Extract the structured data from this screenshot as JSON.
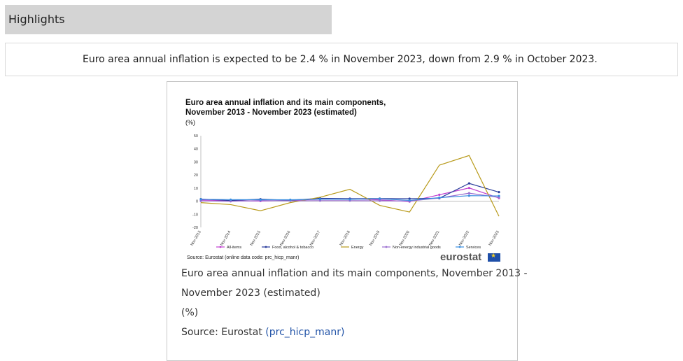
{
  "highlights": {
    "title": "Highlights"
  },
  "summary": {
    "text": "Euro area annual inflation is expected to be 2.4 % in November 2023, down from 2.9 % in October 2023."
  },
  "figure": {
    "chart_title_line1": "Euro area annual inflation and its main components,",
    "chart_title_line2": "November 2013 - November 2023 (estimated)",
    "unit": "(%)",
    "source_line": "Source: Eurostat (online data code: prc_hicp_manr)",
    "logo": "eurostat",
    "caption_line1": "Euro area annual inflation and its main components, November 2013 -",
    "caption_line2": "November 2023 (estimated)",
    "caption_unit": "(%)",
    "caption_source_prefix": "Source: Eurostat ",
    "caption_source_link": "(prc_hicp_manr)"
  },
  "chart_data": {
    "type": "line",
    "title": "Euro area annual inflation and its main components, November 2013 - November 2023 (estimated)",
    "ylabel": "(%)",
    "ylim": [
      -20,
      50
    ],
    "yticks": [
      -20,
      -10,
      0,
      10,
      20,
      30,
      40,
      50
    ],
    "x": [
      "Nov-2013",
      "Nov-2014",
      "Nov-2015",
      "Nov-2016",
      "Nov-2017",
      "Nov-2018",
      "Nov-2019",
      "Nov-2020",
      "Nov-2021",
      "Nov-2022",
      "Nov-2023"
    ],
    "legend_position": "bottom",
    "grid": false,
    "series": [
      {
        "name": "All-items",
        "color": "#c040d0",
        "marker": "square",
        "values": [
          0.9,
          0.3,
          0.1,
          0.6,
          1.5,
          1.9,
          1.0,
          -0.3,
          4.9,
          10.1,
          2.4
        ]
      },
      {
        "name": "Food, alcohol & tobacco",
        "color": "#2a3d9c",
        "marker": "diamond",
        "values": [
          1.6,
          0.5,
          1.5,
          0.7,
          2.2,
          1.9,
          2.0,
          1.9,
          2.2,
          13.6,
          6.9
        ]
      },
      {
        "name": "Energy",
        "color": "#b89a1a",
        "marker": "none",
        "values": [
          -1.1,
          -2.6,
          -7.3,
          -1.1,
          3.0,
          9.1,
          -3.2,
          -8.3,
          27.5,
          34.9,
          -11.5
        ]
      },
      {
        "name": "Non-energy industrial goods",
        "color": "#9b6fd0",
        "marker": "dot",
        "values": [
          0.2,
          -0.1,
          0.5,
          0.3,
          0.4,
          0.4,
          0.3,
          0.1,
          2.4,
          6.1,
          2.9
        ]
      },
      {
        "name": "Services",
        "color": "#3a8ee0",
        "marker": "dot",
        "values": [
          1.4,
          1.2,
          1.1,
          1.1,
          1.5,
          1.4,
          1.8,
          0.6,
          2.7,
          4.2,
          4.0
        ]
      }
    ]
  }
}
